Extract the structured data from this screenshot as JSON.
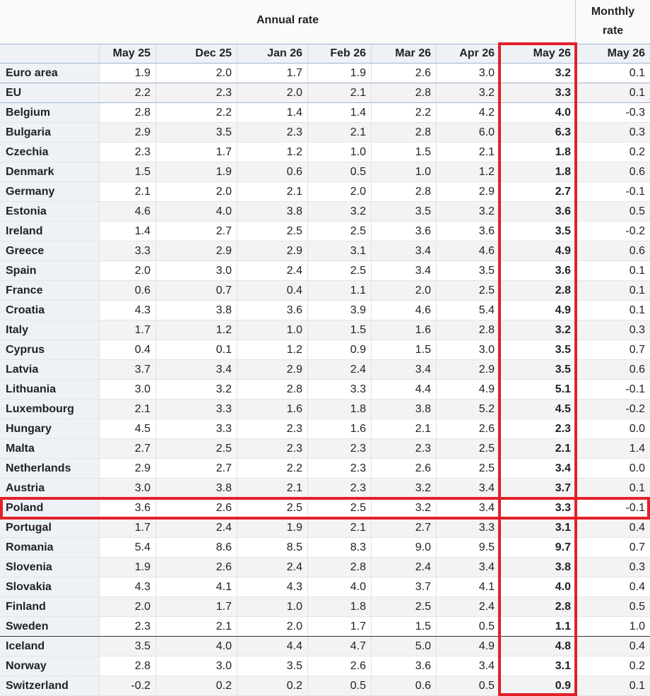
{
  "header": {
    "group_annual": "Annual rate",
    "group_monthly": "Monthly rate",
    "columns": [
      "May 25",
      "Dec 25",
      "Jan 26",
      "Feb 26",
      "Mar 26",
      "Apr 26",
      "May 26",
      "May 26"
    ]
  },
  "table": {
    "rows": [
      [
        "Euro area",
        "1.9",
        "2.0",
        "1.7",
        "1.9",
        "2.6",
        "3.0",
        "3.2",
        "0.1"
      ],
      [
        "EU",
        "2.2",
        "2.3",
        "2.0",
        "2.1",
        "2.8",
        "3.2",
        "3.3",
        "0.1"
      ],
      [
        "Belgium",
        "2.8",
        "2.2",
        "1.4",
        "1.4",
        "2.2",
        "4.2",
        "4.0",
        "-0.3"
      ],
      [
        "Bulgaria",
        "2.9",
        "3.5",
        "2.3",
        "2.1",
        "2.8",
        "6.0",
        "6.3",
        "0.3"
      ],
      [
        "Czechia",
        "2.3",
        "1.7",
        "1.2",
        "1.0",
        "1.5",
        "2.1",
        "1.8",
        "0.2"
      ],
      [
        "Denmark",
        "1.5",
        "1.9",
        "0.6",
        "0.5",
        "1.0",
        "1.2",
        "1.8",
        "0.6"
      ],
      [
        "Germany",
        "2.1",
        "2.0",
        "2.1",
        "2.0",
        "2.8",
        "2.9",
        "2.7",
        "-0.1"
      ],
      [
        "Estonia",
        "4.6",
        "4.0",
        "3.8",
        "3.2",
        "3.5",
        "3.2",
        "3.6",
        "0.5"
      ],
      [
        "Ireland",
        "1.4",
        "2.7",
        "2.5",
        "2.5",
        "3.6",
        "3.6",
        "3.5",
        "-0.2"
      ],
      [
        "Greece",
        "3.3",
        "2.9",
        "2.9",
        "3.1",
        "3.4",
        "4.6",
        "4.9",
        "0.6"
      ],
      [
        "Spain",
        "2.0",
        "3.0",
        "2.4",
        "2.5",
        "3.4",
        "3.5",
        "3.6",
        "0.1"
      ],
      [
        "France",
        "0.6",
        "0.7",
        "0.4",
        "1.1",
        "2.0",
        "2.5",
        "2.8",
        "0.1"
      ],
      [
        "Croatia",
        "4.3",
        "3.8",
        "3.6",
        "3.9",
        "4.6",
        "5.4",
        "4.9",
        "0.1"
      ],
      [
        "Italy",
        "1.7",
        "1.2",
        "1.0",
        "1.5",
        "1.6",
        "2.8",
        "3.2",
        "0.3"
      ],
      [
        "Cyprus",
        "0.4",
        "0.1",
        "1.2",
        "0.9",
        "1.5",
        "3.0",
        "3.5",
        "0.7"
      ],
      [
        "Latvia",
        "3.7",
        "3.4",
        "2.9",
        "2.4",
        "3.4",
        "2.9",
        "3.5",
        "0.6"
      ],
      [
        "Lithuania",
        "3.0",
        "3.2",
        "2.8",
        "3.3",
        "4.4",
        "4.9",
        "5.1",
        "-0.1"
      ],
      [
        "Luxembourg",
        "2.1",
        "3.3",
        "1.6",
        "1.8",
        "3.8",
        "5.2",
        "4.5",
        "-0.2"
      ],
      [
        "Hungary",
        "4.5",
        "3.3",
        "2.3",
        "1.6",
        "2.1",
        "2.6",
        "2.3",
        "0.0"
      ],
      [
        "Malta",
        "2.7",
        "2.5",
        "2.3",
        "2.3",
        "2.3",
        "2.5",
        "2.1",
        "1.4"
      ],
      [
        "Netherlands",
        "2.9",
        "2.7",
        "2.2",
        "2.3",
        "2.6",
        "2.5",
        "3.4",
        "0.0"
      ],
      [
        "Austria",
        "3.0",
        "3.8",
        "2.1",
        "2.3",
        "3.2",
        "3.4",
        "3.7",
        "0.1"
      ],
      [
        "Poland",
        "3.6",
        "2.6",
        "2.5",
        "2.5",
        "3.2",
        "3.4",
        "3.3",
        "-0.1"
      ],
      [
        "Portugal",
        "1.7",
        "2.4",
        "1.9",
        "2.1",
        "2.7",
        "3.3",
        "3.1",
        "0.4"
      ],
      [
        "Romania",
        "5.4",
        "8.6",
        "8.5",
        "8.3",
        "9.0",
        "9.5",
        "9.7",
        "0.7"
      ],
      [
        "Slovenia",
        "1.9",
        "2.6",
        "2.4",
        "2.8",
        "2.4",
        "3.4",
        "3.8",
        "0.3"
      ],
      [
        "Slovakia",
        "4.3",
        "4.1",
        "4.3",
        "4.0",
        "3.7",
        "4.1",
        "4.0",
        "0.4"
      ],
      [
        "Finland",
        "2.0",
        "1.7",
        "1.0",
        "1.8",
        "2.5",
        "2.4",
        "2.8",
        "0.5"
      ],
      [
        "Sweden",
        "2.3",
        "2.1",
        "2.0",
        "1.7",
        "1.5",
        "0.5",
        "1.1",
        "1.0"
      ],
      [
        "Iceland",
        "3.5",
        "4.0",
        "4.4",
        "4.7",
        "5.0",
        "4.9",
        "4.8",
        "0.4"
      ],
      [
        "Norway",
        "2.8",
        "3.0",
        "3.5",
        "2.6",
        "3.6",
        "3.4",
        "3.1",
        "0.2"
      ],
      [
        "Switzerland",
        "-0.2",
        "0.2",
        "0.2",
        "0.5",
        "0.6",
        "0.5",
        "0.9",
        "0.1"
      ]
    ]
  }
}
